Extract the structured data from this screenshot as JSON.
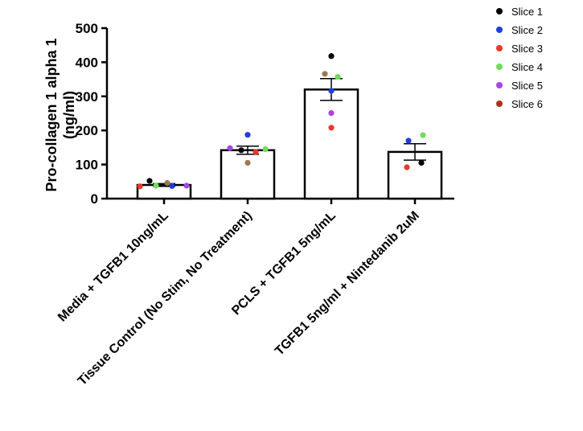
{
  "chart_data": {
    "type": "bar",
    "ylabel": "Pro-collagen 1 alpha 1 (ng/ml)",
    "ylabel_lines": [
      "Pro-collagen 1 alpha 1",
      "(ng/ml)"
    ],
    "ylim": [
      0,
      500
    ],
    "yticks": [
      "0",
      "100",
      "200",
      "300",
      "400",
      "500"
    ],
    "categories": [
      "Media + TGFB1 10ng/mL",
      "Tissue Control (No Stim, No Treatment)",
      "PCLS + TGFB1 5ng/mL",
      "TGFB1 5ng/ml + Nintedanib 2uM"
    ],
    "values": [
      40,
      142,
      320,
      137
    ],
    "error": [
      4,
      12,
      32,
      24
    ],
    "legend_position": "top-right",
    "series": [
      {
        "name": "Slice 1",
        "color": "#000000",
        "points": [
          [
            0,
            52
          ],
          [
            1,
            142
          ],
          [
            2,
            418
          ],
          [
            3,
            105
          ]
        ]
      },
      {
        "name": "Slice 2",
        "color": "#1f3de0",
        "points": [
          [
            0,
            37
          ],
          [
            1,
            187
          ],
          [
            2,
            316
          ],
          [
            3,
            170
          ]
        ]
      },
      {
        "name": "Slice 3",
        "color": "#e8392a",
        "points": [
          [
            0,
            36
          ],
          [
            1,
            137
          ],
          [
            2,
            208
          ],
          [
            3,
            92
          ]
        ]
      },
      {
        "name": "Slice 4",
        "color": "#6fdc5a",
        "points": [
          [
            0,
            38
          ],
          [
            1,
            145
          ],
          [
            2,
            357
          ],
          [
            3,
            186
          ]
        ]
      },
      {
        "name": "Slice 5",
        "color": "#a846e0",
        "points": [
          [
            0,
            38
          ],
          [
            1,
            148
          ],
          [
            2,
            251
          ]
        ]
      },
      {
        "name": "Slice 6",
        "color": "#a8331e",
        "points": []
      },
      {
        "name": "",
        "color": "#9c7a4e",
        "points": [
          [
            0,
            46
          ],
          [
            1,
            105
          ],
          [
            2,
            366
          ]
        ]
      }
    ]
  }
}
